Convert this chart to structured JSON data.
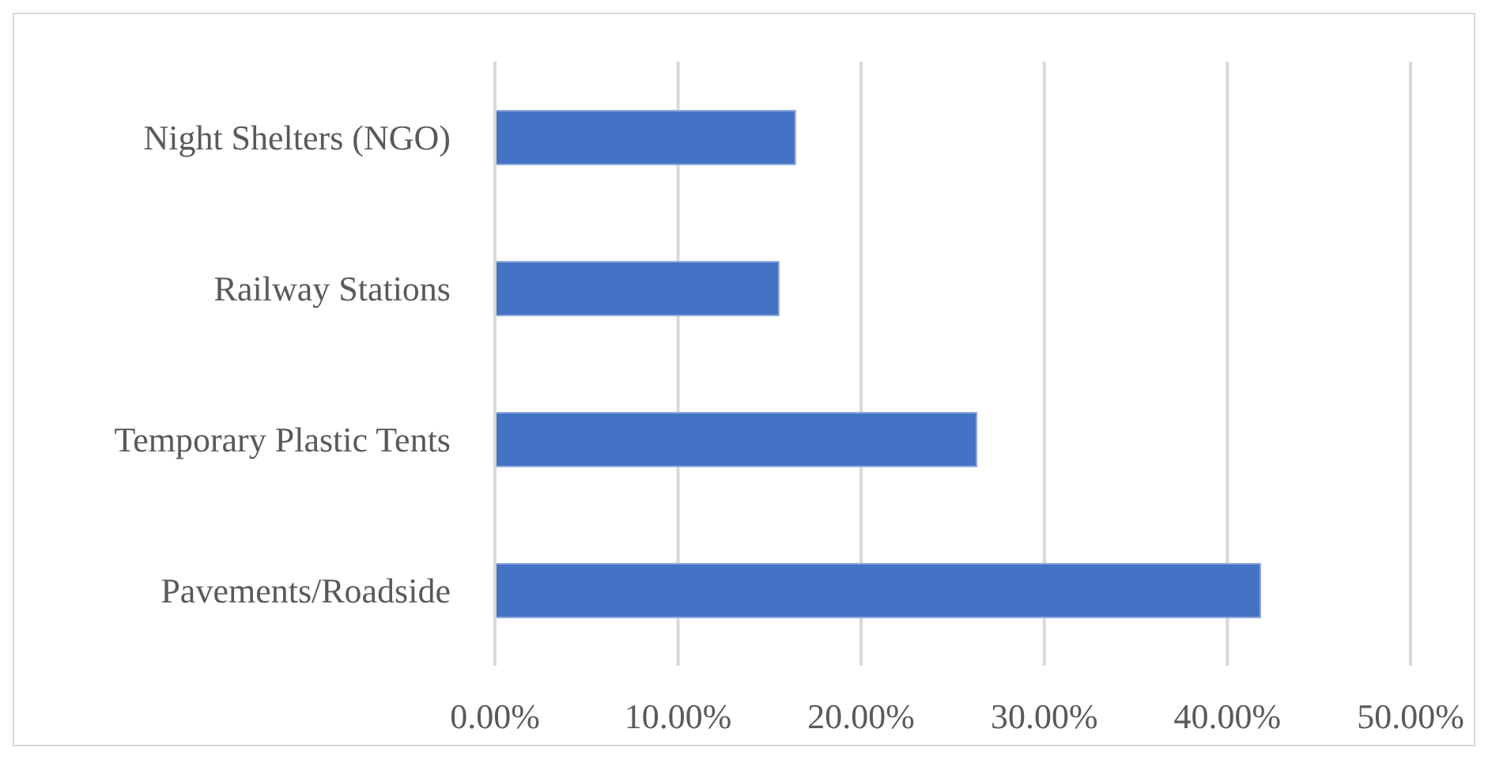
{
  "chart_data": {
    "type": "bar",
    "orientation": "horizontal",
    "categories": [
      "Night Shelters (NGO)",
      "Railway Stations",
      "Temporary Plastic Tents",
      "Pavements/Roadside"
    ],
    "values": [
      16.4,
      15.5,
      26.3,
      41.8
    ],
    "color": "#4472c4",
    "xlim": [
      0,
      50
    ],
    "xticks": [
      {
        "value": 0,
        "label": "0.00%"
      },
      {
        "value": 10,
        "label": "10.00%"
      },
      {
        "value": 20,
        "label": "20.00%"
      },
      {
        "value": 30,
        "label": "30.00%"
      },
      {
        "value": 40,
        "label": "40.00%"
      },
      {
        "value": 50,
        "label": "50.00%"
      }
    ],
    "grid": "x",
    "legend": false
  }
}
